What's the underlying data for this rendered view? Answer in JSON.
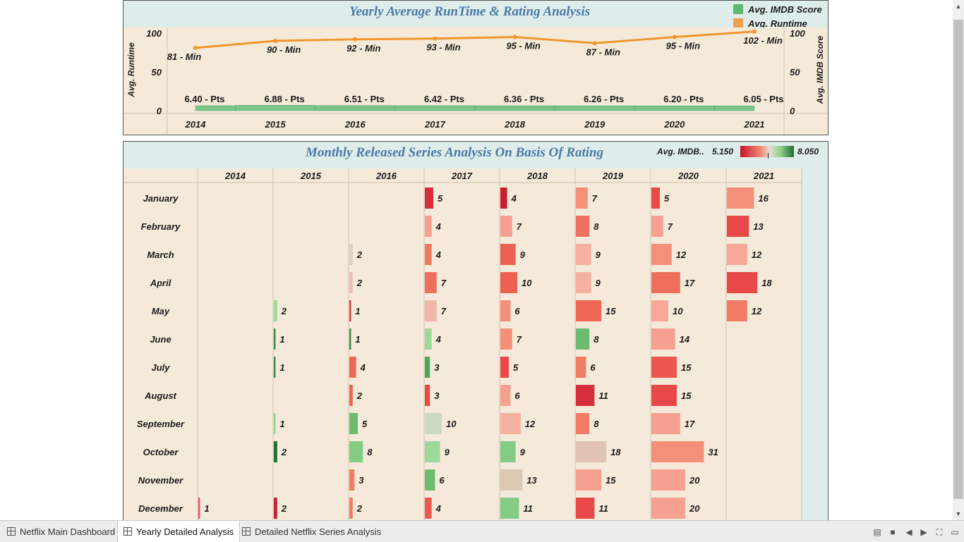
{
  "dashboard": {
    "top": {
      "title": "Yearly Average RunTime & Rating Analysis",
      "legend": [
        {
          "label": "Avg. IMDB Score",
          "color": "#5cb872"
        },
        {
          "label": "Avg. Runtime",
          "color": "#f0a050"
        }
      ],
      "left_axis_label": "Avg. Runtime",
      "right_axis_label": "Avg. IMDB Score",
      "left_ticks": [
        "100",
        "50",
        "0"
      ],
      "right_ticks": [
        "100",
        "50",
        "0"
      ]
    },
    "bottom": {
      "title": "Monthly Released Series Analysis On Basis Of Rating",
      "color_legend": {
        "label": "Avg. IMDB..",
        "min": "5.150",
        "max": "8.050",
        "low_color": "#c8102e",
        "mid_color": "#e6ddd4",
        "high_color": "#1e6e2e"
      }
    }
  },
  "chart_data": [
    {
      "type": "line+bar",
      "title": "Yearly Average RunTime & Rating Analysis",
      "categories": [
        "2014",
        "2015",
        "2016",
        "2017",
        "2018",
        "2019",
        "2020",
        "2021"
      ],
      "series": [
        {
          "name": "Avg. Runtime",
          "type": "line",
          "values": [
            81,
            90,
            92,
            93,
            95,
            87,
            95,
            102
          ],
          "labels": [
            "81 - Min",
            "90 - Min",
            "92 - Min",
            "93 - Min",
            "95 - Min",
            "87 - Min",
            "95 - Min",
            "102 - Min"
          ],
          "color": "#f0982e"
        },
        {
          "name": "Avg. IMDB Score",
          "type": "bar",
          "values": [
            6.4,
            6.88,
            6.51,
            6.42,
            6.36,
            6.26,
            6.2,
            6.05
          ],
          "labels": [
            "6.40 - Pts",
            "6.88 - Pts",
            "6.51 - Pts",
            "6.42 - Pts",
            "6.36 - Pts",
            "6.26 - Pts",
            "6.20 - Pts",
            "6.05 - Pts"
          ],
          "color": "#78c48a"
        }
      ],
      "ylabel": "Avg. Runtime",
      "ylabel_right": "Avg. IMDB Score",
      "ylim": [
        0,
        100
      ],
      "ylim_right": [
        0,
        100
      ]
    },
    {
      "type": "heatmap",
      "title": "Monthly Released Series Analysis On Basis Of Rating",
      "columns": [
        "2014",
        "2015",
        "2016",
        "2017",
        "2018",
        "2019",
        "2020",
        "2021"
      ],
      "rows": [
        "January",
        "February",
        "March",
        "April",
        "May",
        "June",
        "July",
        "August",
        "September",
        "October",
        "November",
        "December"
      ],
      "values": [
        [
          null,
          null,
          null,
          5,
          4,
          7,
          5,
          16
        ],
        [
          null,
          null,
          null,
          4,
          7,
          8,
          7,
          13
        ],
        [
          null,
          null,
          2,
          4,
          9,
          9,
          12,
          12
        ],
        [
          null,
          null,
          2,
          7,
          10,
          9,
          17,
          18
        ],
        [
          null,
          2,
          1,
          7,
          6,
          15,
          10,
          12
        ],
        [
          null,
          1,
          1,
          4,
          7,
          8,
          14,
          null
        ],
        [
          null,
          1,
          4,
          3,
          5,
          6,
          15,
          null
        ],
        [
          null,
          null,
          2,
          3,
          6,
          11,
          15,
          null
        ],
        [
          null,
          1,
          5,
          10,
          12,
          8,
          17,
          null
        ],
        [
          null,
          2,
          8,
          9,
          9,
          18,
          31,
          null
        ],
        [
          null,
          null,
          3,
          6,
          13,
          15,
          20,
          null
        ],
        [
          1,
          2,
          2,
          4,
          11,
          11,
          20,
          null
        ]
      ],
      "colors": [
        [
          null,
          null,
          null,
          "#d62e3c",
          "#c8202e",
          "#f4907a",
          "#e64a42",
          "#f4907a"
        ],
        [
          null,
          null,
          null,
          "#f5a090",
          "#f5a090",
          "#ee7060",
          "#f5a090",
          "#e84848"
        ],
        [
          null,
          null,
          "#ddd0c4",
          "#f0785e",
          "#ec6250",
          "#f5b0a0",
          "#f4907a",
          "#f5a898"
        ],
        [
          null,
          null,
          "#ecc0b4",
          "#f06e5c",
          "#ec6250",
          "#f5b0a0",
          "#f06e5c",
          "#e84848"
        ],
        [
          null,
          "#9ed89a",
          "#d63a40",
          "#f0b8aa",
          "#f4907a",
          "#ee6654",
          "#f5a898",
          "#f07c66"
        ],
        [
          null,
          "#3a8a4a",
          "#3a8a4a",
          "#9ed89a",
          "#f4907a",
          "#6cbc70",
          "#f5a090",
          null
        ],
        [
          null,
          "#3a8a4a",
          "#ee6654",
          "#4ea85a",
          "#e84848",
          "#f07c66",
          "#ec5850",
          null
        ],
        [
          null,
          null,
          "#ee6654",
          "#e64a42",
          "#f5a090",
          "#d62e3c",
          "#e84848",
          null
        ],
        [
          null,
          "#8ed08a",
          "#6cbc70",
          "#ccd8c0",
          "#f5b0a0",
          "#f07c66",
          "#f5a090",
          null
        ],
        [
          null,
          "#1e6e2e",
          "#84cc84",
          "#9ed89a",
          "#84cc84",
          "#e2c4b6",
          "#f4907a",
          null
        ],
        [
          null,
          null,
          "#f07c66",
          "#6cbc70",
          "#ddc8b4",
          "#f5a090",
          "#f5a090",
          null
        ],
        [
          "#e85060",
          "#c8202e",
          "#f07c66",
          "#ec5850",
          "#84cc84",
          "#e84848",
          "#f5a090",
          null
        ]
      ],
      "color_legend": {
        "label": "Avg. IMDB..",
        "min": 5.15,
        "max": 8.05
      }
    }
  ],
  "tabs": [
    {
      "label": "Netflix Main Dashboard",
      "active": false
    },
    {
      "label": "Yearly Detailed Analysis",
      "active": true
    },
    {
      "label": "Detailed Netflix Series Analysis",
      "active": false
    }
  ],
  "controls": [
    "layout-icon",
    "fullscreen-block-icon",
    "prev-icon",
    "next-icon",
    "expand-icon",
    "present-icon"
  ]
}
